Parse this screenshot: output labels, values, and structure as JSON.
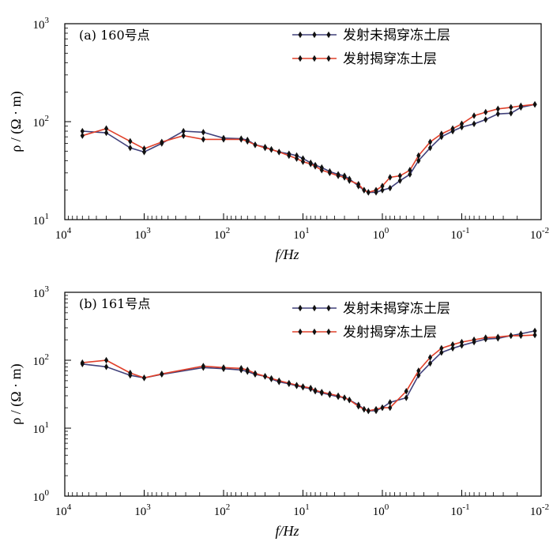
{
  "chart_data": [
    {
      "type": "line",
      "panel_label": "(a) 160号点",
      "xlabel": "f/Hz",
      "ylabel": "ρ / (Ω · m)",
      "x_scale": "log",
      "x_reversed": true,
      "y_scale": "log",
      "xlim": [
        10000,
        0.01
      ],
      "ylim": [
        10,
        1000
      ],
      "x_ticks": [
        {
          "base": "10",
          "exp": "4"
        },
        {
          "base": "10",
          "exp": "3"
        },
        {
          "base": "10",
          "exp": "2"
        },
        {
          "base": "10",
          "exp": "1"
        },
        {
          "base": "10",
          "exp": "0"
        },
        {
          "base": "10",
          "exp": "-1"
        },
        {
          "base": "10",
          "exp": "-2"
        }
      ],
      "y_ticks": [
        {
          "base": "10",
          "exp": "1"
        },
        {
          "base": "10",
          "exp": "2"
        },
        {
          "base": "10",
          "exp": "3"
        }
      ],
      "legend_position": "top-right",
      "x": [
        6000,
        3000,
        1500,
        1000,
        600,
        320,
        180,
        100,
        60,
        50,
        40,
        30,
        25,
        20,
        15,
        12,
        10,
        8,
        7,
        5.8,
        4.6,
        3.6,
        3,
        2.6,
        2,
        1.7,
        1.5,
        1.2,
        1,
        0.8,
        0.6,
        0.45,
        0.35,
        0.25,
        0.18,
        0.13,
        0.1,
        0.07,
        0.05,
        0.035,
        0.024,
        0.018,
        0.012
      ],
      "series": [
        {
          "name": "发射未揭穿冻土层",
          "color": "#40407a",
          "values": [
            80,
            77,
            54,
            49,
            60,
            80,
            78,
            68,
            67,
            65,
            58,
            55,
            52,
            49,
            47,
            45,
            42,
            38,
            36,
            34,
            31,
            29,
            28,
            26,
            22,
            20,
            19,
            19,
            20,
            21,
            25,
            29,
            40,
            54,
            70,
            80,
            88,
            95,
            105,
            120,
            122,
            140,
            150
          ]
        },
        {
          "name": "发射揭穿冻土层",
          "color": "#e0402a",
          "values": [
            72,
            85,
            63,
            53,
            62,
            72,
            66,
            66,
            66,
            63,
            58,
            54,
            52,
            49,
            45,
            42,
            39,
            37,
            35,
            32,
            30,
            28,
            27,
            25,
            23,
            20,
            19,
            20,
            22,
            27,
            28,
            32,
            45,
            62,
            75,
            85,
            95,
            115,
            125,
            135,
            140,
            145,
            150
          ]
        }
      ]
    },
    {
      "type": "line",
      "panel_label": "(b) 161号点",
      "xlabel": "f/Hz",
      "ylabel": "ρ / (Ω · m)",
      "x_scale": "log",
      "x_reversed": true,
      "y_scale": "log",
      "xlim": [
        10000,
        0.01
      ],
      "ylim": [
        1,
        1000
      ],
      "x_ticks": [
        {
          "base": "10",
          "exp": "4"
        },
        {
          "base": "10",
          "exp": "3"
        },
        {
          "base": "10",
          "exp": "2"
        },
        {
          "base": "10",
          "exp": "1"
        },
        {
          "base": "10",
          "exp": "0"
        },
        {
          "base": "10",
          "exp": "-1"
        },
        {
          "base": "10",
          "exp": "-2"
        }
      ],
      "y_ticks": [
        {
          "base": "10",
          "exp": "0"
        },
        {
          "base": "10",
          "exp": "1"
        },
        {
          "base": "10",
          "exp": "2"
        },
        {
          "base": "10",
          "exp": "3"
        }
      ],
      "legend_position": "top-right",
      "x": [
        6000,
        3000,
        1500,
        1000,
        600,
        180,
        100,
        60,
        50,
        40,
        30,
        25,
        20,
        15,
        12,
        10,
        8,
        7,
        5.8,
        4.6,
        3.6,
        3,
        2.6,
        2,
        1.7,
        1.5,
        1.2,
        1,
        0.8,
        0.5,
        0.35,
        0.25,
        0.18,
        0.13,
        0.1,
        0.07,
        0.05,
        0.035,
        0.024,
        0.018,
        0.012
      ],
      "series": [
        {
          "name": "发射未揭穿冻土层",
          "color": "#40407a",
          "values": [
            88,
            80,
            60,
            55,
            62,
            78,
            75,
            72,
            68,
            62,
            58,
            53,
            48,
            45,
            42,
            40,
            38,
            35,
            33,
            31,
            29,
            28,
            26,
            22,
            19,
            18,
            18,
            20,
            24,
            28,
            60,
            90,
            130,
            150,
            165,
            185,
            205,
            210,
            230,
            245,
            270
          ]
        },
        {
          "name": "发射揭穿冻土层",
          "color": "#e0402a",
          "values": [
            92,
            100,
            65,
            55,
            63,
            82,
            78,
            76,
            72,
            64,
            58,
            54,
            50,
            46,
            43,
            41,
            39,
            36,
            34,
            32,
            30,
            28,
            26,
            21,
            19,
            18,
            19,
            20,
            20,
            35,
            70,
            110,
            150,
            170,
            185,
            200,
            215,
            220,
            230,
            230,
            235
          ]
        }
      ]
    }
  ]
}
